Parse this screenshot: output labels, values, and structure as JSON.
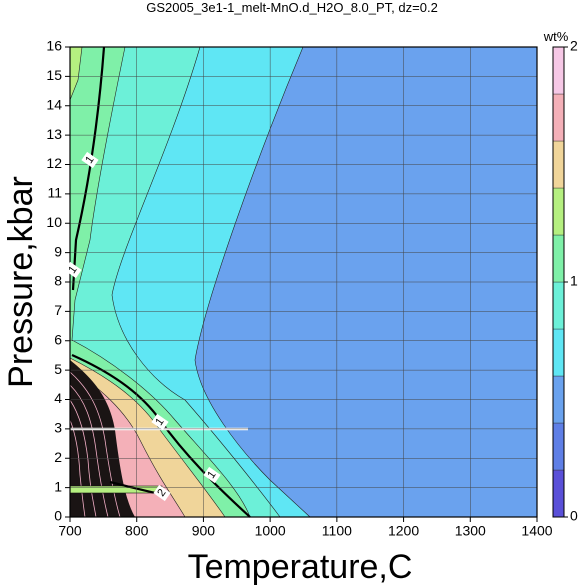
{
  "chart_data": {
    "type": "contour",
    "title": "GS2005_3e1-1_melt-MnO.d_H2O_8.0_PT, dz=0.2",
    "x_label": "Temperature,C",
    "y_label": "Pressure,kbar",
    "xlim": [
      700,
      1400
    ],
    "xticks": [
      700,
      800,
      900,
      1000,
      1100,
      1200,
      1300,
      1400
    ],
    "ylim": [
      0,
      16
    ],
    "yticks": [
      0,
      1,
      2,
      3,
      4,
      5,
      6,
      7,
      8,
      9,
      10,
      11,
      12,
      13,
      14,
      15,
      16
    ],
    "grid": true,
    "contour_labels": [
      1,
      1,
      1,
      1,
      2
    ],
    "colorbar": {
      "label": "wt%",
      "lim": [
        0,
        2
      ],
      "ticks": [
        0,
        1,
        2
      ],
      "colors": [
        "#5a50d8",
        "#5f7fe6",
        "#6aa2ee",
        "#5fe6f4",
        "#6cf0d8",
        "#7ff0a8",
        "#b5ef80",
        "#f0d59a",
        "#f4b0b8",
        "#f6c8e6"
      ]
    }
  }
}
